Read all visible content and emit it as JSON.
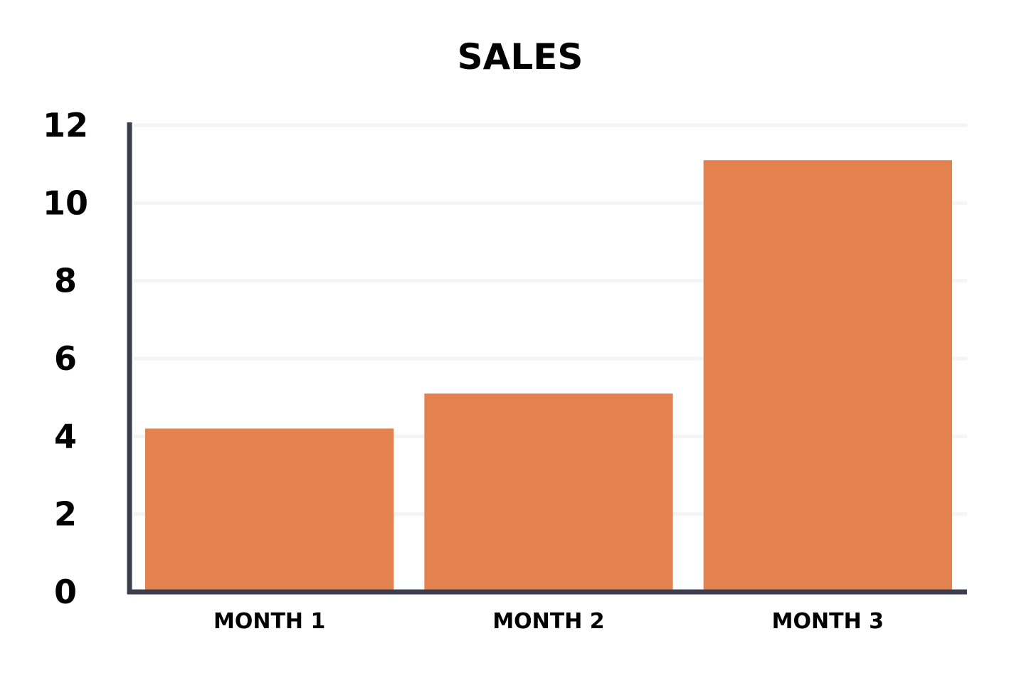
{
  "chart_data": {
    "type": "bar",
    "title": "SALES",
    "xlabel": "",
    "ylabel": "",
    "categories": [
      "MONTH 1",
      "MONTH 2",
      "MONTH 3"
    ],
    "values": [
      4.2,
      5.1,
      11.1
    ],
    "ylim": [
      0,
      12
    ],
    "yticks": [
      "0",
      "2",
      "4",
      "6",
      "8",
      "10",
      "12"
    ],
    "grid": true,
    "legend": "none",
    "colors": {
      "bar": "#E3814F",
      "axis": "#3A3F4B",
      "grid": "#F4F4F4",
      "text": "#000000"
    }
  }
}
